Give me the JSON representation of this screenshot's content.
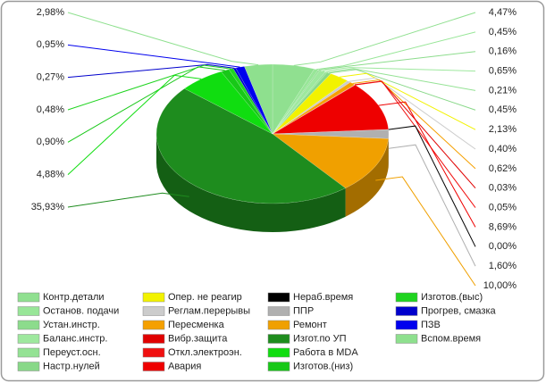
{
  "chart_data": {
    "type": "pie3d",
    "categories": [
      "Контр.детали",
      "Останов. подачи",
      "Устан.инстр.",
      "Баланс.инстр.",
      "Переуст.осн.",
      "Настр.нулей",
      "Опер. не реагир",
      "Реглам.перерывы",
      "Пересменка",
      "Вибр.защита",
      "Откл.электроэн.",
      "Авария",
      "Нераб.время",
      "ППР",
      "Ремонт",
      "Изгот.по УП",
      "Работа в MDA",
      "Изготов.(низ)",
      "Изготов.(выс)",
      "Прогрев, смазка",
      "ПЗВ",
      "Вспом.время"
    ],
    "values": [
      4.47,
      0.45,
      0.16,
      0.65,
      0.21,
      0.45,
      2.13,
      0.4,
      0.62,
      0.03,
      0.05,
      8.69,
      0.0,
      1.6,
      10.0,
      35.93,
      4.88,
      0.9,
      0.48,
      0.27,
      0.95,
      2.98
    ],
    "value_labels": [
      "4,47%",
      "0,45%",
      "0,16%",
      "0,65%",
      "0,21%",
      "0,45%",
      "2,13%",
      "0,40%",
      "0,62%",
      "0,03%",
      "0,05%",
      "8,69%",
      "0,00%",
      "1,60%",
      "10,00%",
      "35,93%",
      "4,88%",
      "0,90%",
      "0,48%",
      "0,27%",
      "0,95%",
      "2,98%"
    ],
    "colors": [
      "#90e090",
      "#98e698",
      "#8cdc8c",
      "#9ee89e",
      "#94e294",
      "#88d888",
      "#f2f200",
      "#cccccc",
      "#f5a000",
      "#e00000",
      "#f01010",
      "#ee0000",
      "#000000",
      "#b0b0b0",
      "#f0a000",
      "#1e8c1e",
      "#10dd10",
      "#18c818",
      "#20d420",
      "#0000cc",
      "#0000ee",
      "#8ee08e"
    ]
  }
}
